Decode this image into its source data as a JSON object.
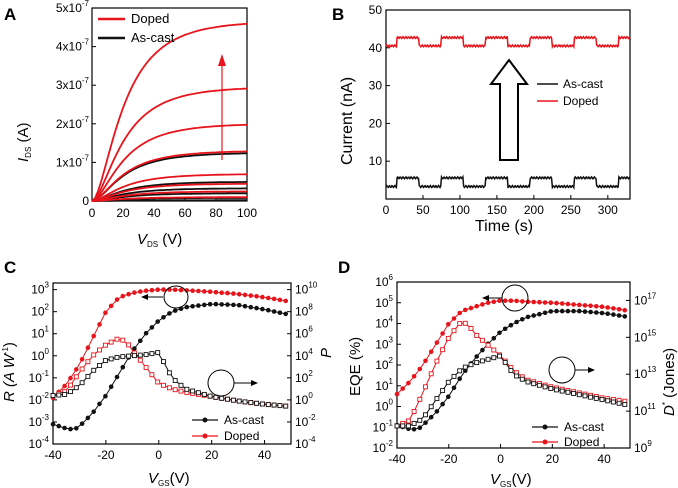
{
  "figure": {
    "colors": {
      "doped": "#e8141b",
      "ascast": "#111111",
      "arrow": "#e8141b"
    },
    "panels": [
      {
        "id": "A",
        "label": "A"
      },
      {
        "id": "B",
        "label": "B"
      },
      {
        "id": "C",
        "label": "C"
      },
      {
        "id": "D",
        "label": "D"
      }
    ]
  },
  "chart_data": [
    {
      "panel": "A",
      "type": "line",
      "xlabel_main": "V",
      "xlabel_sub": "DS",
      "xlabel_unit": " (V)",
      "ylabel_main": "I",
      "ylabel_sub": "DS",
      "ylabel_unit": " (A)",
      "xlim": [
        0,
        100
      ],
      "ylim": [
        0,
        5e-07
      ],
      "xticks": [
        "0",
        "20",
        "40",
        "60",
        "80",
        "100"
      ],
      "yticks": [
        {
          "value": 0,
          "mant": "0",
          "exp": ""
        },
        {
          "value": 1e-07,
          "mant": "1x10",
          "exp": "-7"
        },
        {
          "value": 2e-07,
          "mant": "2x10",
          "exp": "-7"
        },
        {
          "value": 3e-07,
          "mant": "3x10",
          "exp": "-7"
        },
        {
          "value": 4e-07,
          "mant": "4x10",
          "exp": "-7"
        },
        {
          "value": 5e-07,
          "mant": "5x10",
          "exp": "-7"
        }
      ],
      "legend": [
        "Doped",
        "As-cast"
      ],
      "annotation": "upward arrow indicating increasing gate voltage",
      "series": [
        {
          "name": "Doped",
          "saturation": [
            4.65e-07,
            2.95e-07,
            2e-07,
            1.3e-07,
            7e-08,
            4.5e-08,
            2.5e-08,
            1e-08
          ]
        },
        {
          "name": "As-cast",
          "saturation": [
            1.25e-07,
            5e-08,
            3.3e-08,
            2e-08,
            8e-09,
            2e-09
          ]
        }
      ]
    },
    {
      "panel": "B",
      "type": "line",
      "xlabel": "Time (s)",
      "ylabel": "Current (nA)",
      "xlim": [
        0,
        330
      ],
      "ylim": [
        0,
        50
      ],
      "xticks": [
        "0",
        "50",
        "100",
        "150",
        "200",
        "250",
        "300"
      ],
      "yticks": [
        "10",
        "20",
        "30",
        "40",
        "50"
      ],
      "legend": [
        "As-cast",
        "Doped"
      ],
      "series": [
        {
          "name": "Doped",
          "low": 40.5,
          "high": 42.7,
          "period_s": 60,
          "on_start_s": 15,
          "on_duration_s": 30
        },
        {
          "name": "As-cast",
          "low": 3.3,
          "high": 5.6,
          "period_s": 60,
          "on_start_s": 15,
          "on_duration_s": 30
        }
      ]
    },
    {
      "panel": "C",
      "type": "scatter",
      "xlabel_main": "V",
      "xlabel_sub": "GS",
      "xlabel_unit": "(V)",
      "ylabel": "R (A W",
      "ylabel_sup": "-1",
      "ylabel_end": ")",
      "y2label": "P",
      "xlim": [
        -40,
        50
      ],
      "xticks": [
        "-40",
        "-20",
        "0",
        "20",
        "40"
      ],
      "yticks": [
        {
          "base": "10",
          "exp": "3"
        },
        {
          "base": "10",
          "exp": "2"
        },
        {
          "base": "10",
          "exp": "1"
        },
        {
          "base": "10",
          "exp": "0"
        },
        {
          "base": "10",
          "exp": "-1"
        },
        {
          "base": "10",
          "exp": "-2"
        },
        {
          "base": "10",
          "exp": "-3"
        },
        {
          "base": "10",
          "exp": "-4"
        }
      ],
      "y2ticks": [
        {
          "base": "10",
          "exp": "10"
        },
        {
          "base": "10",
          "exp": "8"
        },
        {
          "base": "10",
          "exp": "6"
        },
        {
          "base": "10",
          "exp": "4"
        },
        {
          "base": "10",
          "exp": "2"
        },
        {
          "base": "10",
          "exp": "0"
        },
        {
          "base": "10",
          "exp": "-2"
        },
        {
          "base": "10",
          "exp": "-4"
        }
      ],
      "ylim_log10": [
        -4,
        3.3
      ],
      "y2lim_log10": [
        -4,
        10.6
      ],
      "legend": [
        "As-cast",
        "Doped"
      ],
      "series": [
        {
          "name": "Doped R",
          "axis": "left",
          "x": [
            -40,
            -35,
            -30,
            -25,
            -20,
            -15,
            -10,
            -5,
            0,
            5,
            10,
            20,
            30,
            40,
            50
          ],
          "log10_y": [
            -1.9,
            -1.3,
            -0.4,
            0.8,
            2.0,
            2.65,
            2.85,
            2.95,
            3.0,
            3.0,
            2.97,
            2.9,
            2.8,
            2.65,
            2.45
          ]
        },
        {
          "name": "As-cast R",
          "axis": "left",
          "x": [
            -40,
            -35,
            -32,
            -30,
            -25,
            -20,
            -15,
            -10,
            -5,
            0,
            5,
            10,
            20,
            30,
            40,
            50
          ],
          "log10_y": [
            -3.1,
            -3.3,
            -3.35,
            -3.2,
            -2.6,
            -1.8,
            -0.8,
            0.2,
            1.0,
            1.6,
            2.0,
            2.2,
            2.35,
            2.3,
            2.1,
            1.85
          ]
        },
        {
          "name": "Doped P",
          "axis": "right",
          "x": [
            -40,
            -35,
            -30,
            -25,
            -20,
            -15,
            -12,
            -10,
            -5,
            0,
            5,
            10,
            20,
            30,
            40,
            50
          ],
          "log10_y": [
            0.4,
            0.8,
            2.5,
            4.0,
            5.0,
            5.6,
            5.2,
            4.5,
            3.0,
            1.5,
            1.0,
            0.7,
            0.3,
            -0.1,
            -0.4,
            -0.6
          ]
        },
        {
          "name": "As-cast P",
          "axis": "right",
          "x": [
            -40,
            -35,
            -30,
            -25,
            -20,
            -15,
            -10,
            -5,
            0,
            5,
            10,
            20,
            30,
            40,
            50
          ],
          "log10_y": [
            0.4,
            0.5,
            1.3,
            2.6,
            3.6,
            3.9,
            4.0,
            4.1,
            4.3,
            2.0,
            1.0,
            0.3,
            -0.1,
            -0.4,
            -0.6
          ]
        }
      ]
    },
    {
      "panel": "D",
      "type": "scatter",
      "xlabel_main": "V",
      "xlabel_sub": "GS",
      "xlabel_unit": "(V)",
      "ylabel": "EQE (%)",
      "y2label_main": "D",
      "y2label_sup": "*",
      "y2label_unit": " (Jones)",
      "xlim": [
        -40,
        50
      ],
      "xticks": [
        "-40",
        "-20",
        "0",
        "20",
        "40"
      ],
      "yticks": [
        {
          "base": "10",
          "exp": "6"
        },
        {
          "base": "10",
          "exp": "5"
        },
        {
          "base": "10",
          "exp": "4"
        },
        {
          "base": "10",
          "exp": "3"
        },
        {
          "base": "10",
          "exp": "2"
        },
        {
          "base": "10",
          "exp": "1"
        },
        {
          "base": "10",
          "exp": "0"
        },
        {
          "base": "10",
          "exp": "-1"
        },
        {
          "base": "10",
          "exp": "-2"
        }
      ],
      "y2ticks": [
        {
          "base": "10",
          "exp": "17"
        },
        {
          "base": "10",
          "exp": "15"
        },
        {
          "base": "10",
          "exp": "13"
        },
        {
          "base": "10",
          "exp": "11"
        },
        {
          "base": "10",
          "exp": "9"
        }
      ],
      "ylim_log10": [
        -2,
        6
      ],
      "y2lim_log10": [
        9,
        18
      ],
      "legend": [
        "As-cast",
        "Doped"
      ],
      "series": [
        {
          "name": "Doped EQE",
          "axis": "left",
          "x": [
            -40,
            -35,
            -30,
            -25,
            -20,
            -15,
            -10,
            -5,
            0,
            5,
            10,
            20,
            30,
            40,
            50
          ],
          "log10_y": [
            0.6,
            1.2,
            2.0,
            3.0,
            4.0,
            4.6,
            4.8,
            5.0,
            5.1,
            5.1,
            5.05,
            5.0,
            4.9,
            4.8,
            4.6
          ]
        },
        {
          "name": "As-cast EQE",
          "axis": "left",
          "x": [
            -40,
            -35,
            -32,
            -30,
            -25,
            -20,
            -15,
            -10,
            -5,
            0,
            5,
            10,
            20,
            30,
            40,
            50
          ],
          "log10_y": [
            -0.9,
            -1.1,
            -1.1,
            -0.9,
            -0.3,
            0.5,
            1.5,
            2.3,
            3.0,
            3.6,
            4.0,
            4.3,
            4.6,
            4.6,
            4.5,
            4.3
          ]
        },
        {
          "name": "Doped D*",
          "axis": "right",
          "x": [
            -40,
            -35,
            -30,
            -25,
            -20,
            -15,
            -12,
            -10,
            -5,
            0,
            5,
            10,
            20,
            30,
            40,
            50
          ],
          "log10_y": [
            10.2,
            10.5,
            12.0,
            13.6,
            15.0,
            15.9,
            15.6,
            15.2,
            14.6,
            14.0,
            13.2,
            12.7,
            12.3,
            12.0,
            11.7,
            11.5
          ]
        },
        {
          "name": "As-cast D*",
          "axis": "right",
          "x": [
            -40,
            -35,
            -30,
            -25,
            -20,
            -15,
            -10,
            -5,
            0,
            5,
            10,
            20,
            30,
            40,
            50
          ],
          "log10_y": [
            10.2,
            10.2,
            10.6,
            11.6,
            12.6,
            13.3,
            13.6,
            13.8,
            14.0,
            13.0,
            12.6,
            12.2,
            11.9,
            11.6,
            11.3
          ]
        }
      ]
    }
  ]
}
